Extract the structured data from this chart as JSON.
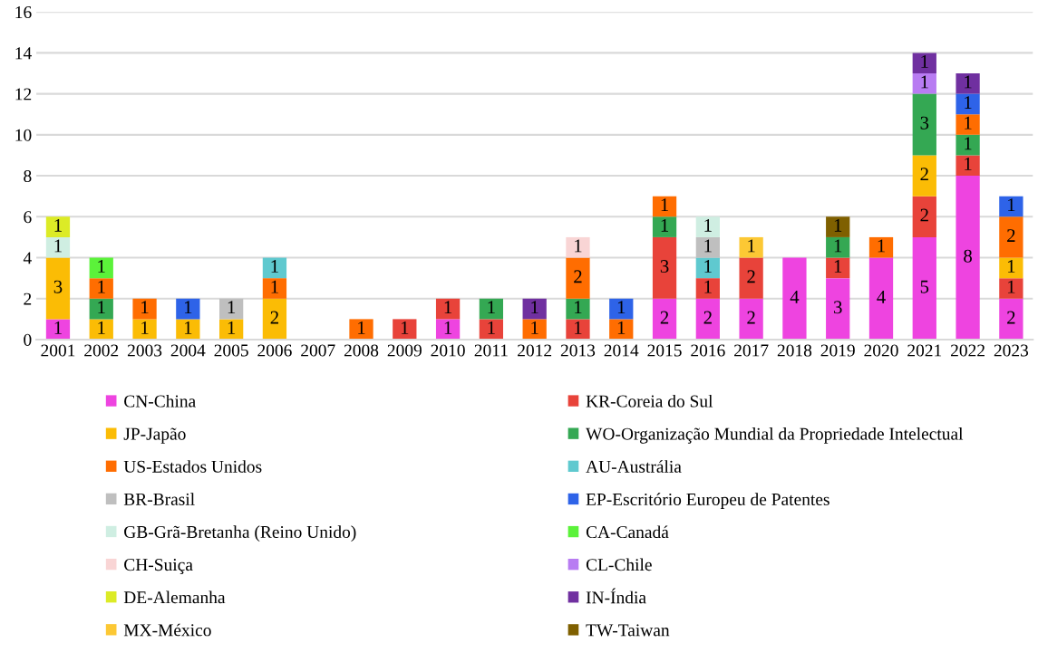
{
  "chart_data": {
    "type": "bar",
    "stacked": true,
    "data_labels": true,
    "grid": "y",
    "legend": "bottom",
    "categories": [
      "2001",
      "2002",
      "2003",
      "2004",
      "2005",
      "2006",
      "2007",
      "2008",
      "2009",
      "2010",
      "2011",
      "2012",
      "2013",
      "2014",
      "2015",
      "2016",
      "2017",
      "2018",
      "2019",
      "2020",
      "2021",
      "2022",
      "2023"
    ],
    "ylim": [
      0,
      16
    ],
    "yticks": [
      0,
      2,
      4,
      6,
      8,
      10,
      12,
      14,
      16
    ],
    "series": [
      {
        "name": "CN-China",
        "color": "#ee44e0",
        "values": [
          1,
          null,
          null,
          null,
          null,
          null,
          null,
          null,
          null,
          1,
          null,
          null,
          null,
          null,
          2,
          2,
          2,
          4,
          3,
          4,
          5,
          8,
          2
        ]
      },
      {
        "name": "KR-Coreia do Sul",
        "color": "#e8433a",
        "values": [
          null,
          null,
          null,
          null,
          null,
          null,
          null,
          null,
          1,
          1,
          1,
          null,
          1,
          null,
          3,
          1,
          2,
          null,
          1,
          null,
          2,
          1,
          1
        ]
      },
      {
        "name": "JP-Japão",
        "color": "#fbbc05",
        "values": [
          3,
          1,
          1,
          1,
          1,
          2,
          null,
          null,
          null,
          null,
          null,
          null,
          null,
          null,
          null,
          null,
          null,
          null,
          null,
          null,
          2,
          null,
          1
        ]
      },
      {
        "name": "WO-Organização Mundial da Propriedade Intelectual",
        "color": "#34a853",
        "values": [
          null,
          1,
          null,
          null,
          null,
          null,
          null,
          null,
          null,
          null,
          1,
          null,
          1,
          null,
          1,
          null,
          null,
          null,
          1,
          null,
          3,
          1,
          null
        ]
      },
      {
        "name": "US-Estados Unidos",
        "color": "#ff6d01",
        "values": [
          null,
          1,
          1,
          null,
          null,
          1,
          null,
          1,
          null,
          null,
          null,
          1,
          2,
          1,
          1,
          null,
          null,
          null,
          null,
          1,
          null,
          1,
          2
        ]
      },
      {
        "name": "AU-Austrália",
        "color": "#5fc9cf",
        "values": [
          null,
          null,
          null,
          null,
          null,
          1,
          null,
          null,
          null,
          null,
          null,
          null,
          null,
          null,
          null,
          1,
          null,
          null,
          null,
          null,
          null,
          null,
          null
        ]
      },
      {
        "name": "BR-Brasil",
        "color": "#bfbfbf",
        "values": [
          null,
          null,
          null,
          null,
          1,
          null,
          null,
          null,
          null,
          null,
          null,
          null,
          null,
          null,
          null,
          1,
          null,
          null,
          null,
          null,
          null,
          null,
          null
        ]
      },
      {
        "name": "EP-Escritório Europeu de Patentes",
        "color": "#2e63e8",
        "values": [
          null,
          null,
          null,
          1,
          null,
          null,
          null,
          null,
          null,
          null,
          null,
          null,
          null,
          1,
          null,
          null,
          null,
          null,
          null,
          null,
          null,
          1,
          1
        ]
      },
      {
        "name": "GB-Grã-Bretanha (Reino Unido)",
        "color": "#cfeee2",
        "values": [
          1,
          null,
          null,
          null,
          null,
          null,
          null,
          null,
          null,
          null,
          null,
          null,
          null,
          null,
          null,
          1,
          null,
          null,
          null,
          null,
          null,
          null,
          null
        ]
      },
      {
        "name": "CA-Canadá",
        "color": "#5bf23a",
        "values": [
          null,
          1,
          null,
          null,
          null,
          null,
          null,
          null,
          null,
          null,
          null,
          null,
          null,
          null,
          null,
          null,
          null,
          null,
          null,
          null,
          null,
          null,
          null
        ]
      },
      {
        "name": "CH-Suiça",
        "color": "#f9d5d5",
        "values": [
          null,
          null,
          null,
          null,
          null,
          null,
          null,
          null,
          null,
          null,
          null,
          null,
          1,
          null,
          null,
          null,
          null,
          null,
          null,
          null,
          null,
          null,
          null
        ]
      },
      {
        "name": "CL-Chile",
        "color": "#b87cf2",
        "values": [
          null,
          null,
          null,
          null,
          null,
          null,
          null,
          null,
          null,
          null,
          null,
          null,
          null,
          null,
          null,
          null,
          null,
          null,
          null,
          null,
          1,
          null,
          null
        ]
      },
      {
        "name": "DE-Alemanha",
        "color": "#dceb26",
        "values": [
          1,
          null,
          null,
          null,
          null,
          null,
          null,
          null,
          null,
          null,
          null,
          null,
          null,
          null,
          null,
          null,
          null,
          null,
          null,
          null,
          null,
          null,
          null
        ]
      },
      {
        "name": "IN-Índia",
        "color": "#7030a0",
        "values": [
          null,
          null,
          null,
          null,
          null,
          null,
          null,
          null,
          null,
          null,
          null,
          1,
          null,
          null,
          null,
          null,
          null,
          null,
          null,
          null,
          1,
          1,
          null
        ]
      },
      {
        "name": "MX-México",
        "color": "#fcc834",
        "values": [
          null,
          null,
          null,
          null,
          null,
          null,
          null,
          null,
          null,
          null,
          null,
          null,
          null,
          null,
          null,
          null,
          1,
          null,
          null,
          null,
          null,
          null,
          null
        ]
      },
      {
        "name": "TW-Taiwan",
        "color": "#7f6000",
        "values": [
          null,
          null,
          null,
          null,
          null,
          null,
          null,
          null,
          null,
          null,
          null,
          null,
          null,
          null,
          null,
          null,
          null,
          null,
          1,
          null,
          null,
          null,
          null
        ]
      }
    ]
  }
}
